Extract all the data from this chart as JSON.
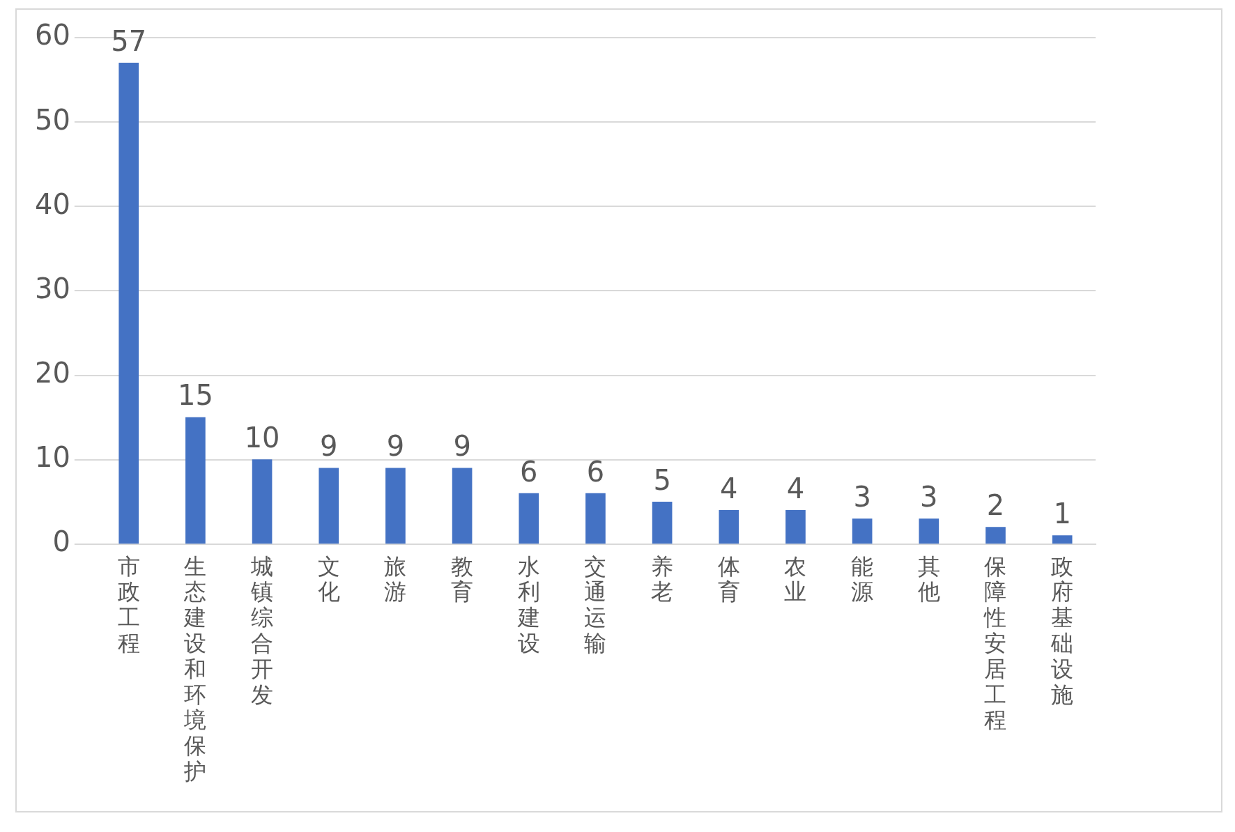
{
  "chart_data": {
    "type": "bar",
    "categories": [
      "市政工程",
      "生态建设和环境保护",
      "城镇综合开发",
      "文化",
      "旅游",
      "教育",
      "水利建设",
      "交通运输",
      "养老",
      "体育",
      "农业",
      "能源",
      "其他",
      "保障性安居工程",
      "政府基础设施"
    ],
    "values": [
      57,
      15,
      10,
      9,
      9,
      9,
      6,
      6,
      5,
      4,
      4,
      3,
      3,
      2,
      1
    ],
    "color": "#4472c4",
    "ylim": [
      0,
      60
    ],
    "yticks": [
      0,
      10,
      20,
      30,
      40,
      50,
      60
    ],
    "grid": "y",
    "data_labels": true,
    "legend": false
  }
}
